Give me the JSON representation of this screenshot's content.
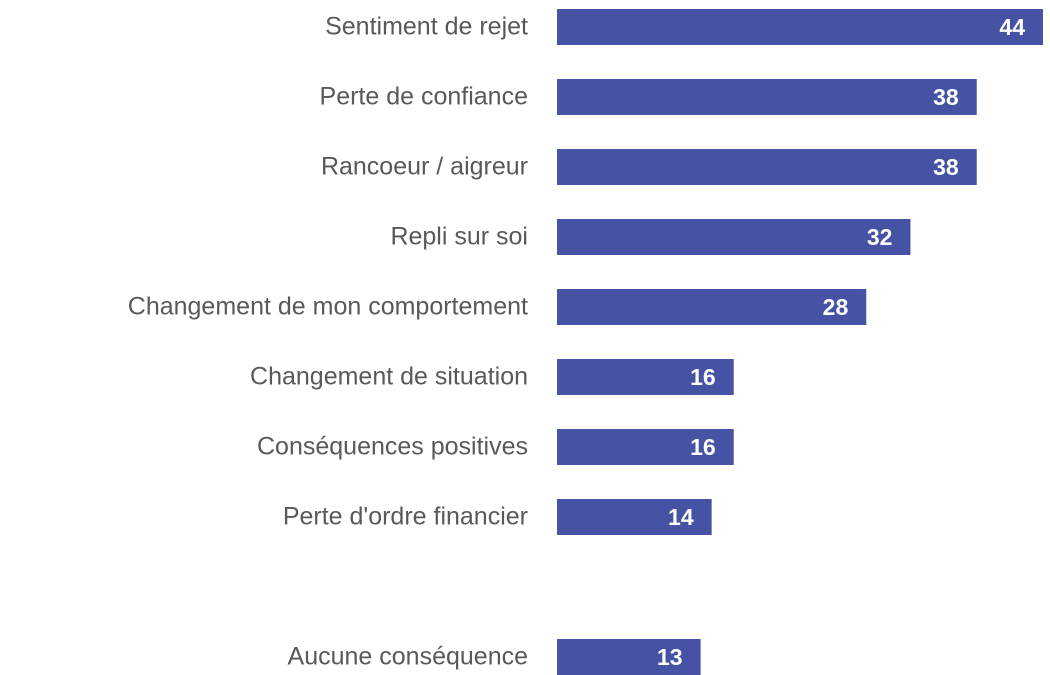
{
  "chart_data": {
    "type": "bar",
    "orientation": "horizontal",
    "categories": [
      "Sentiment de rejet",
      "Perte de confiance",
      "Rancoeur / aigreur",
      "Repli sur soi",
      "Changement de mon comportement",
      "Changement de situation",
      "Conséquences positives",
      "Perte d'ordre financier",
      null,
      "Aucune conséquence"
    ],
    "values": [
      44,
      38,
      38,
      32,
      28,
      16,
      16,
      14,
      null,
      13
    ],
    "color": "#4652a4"
  }
}
